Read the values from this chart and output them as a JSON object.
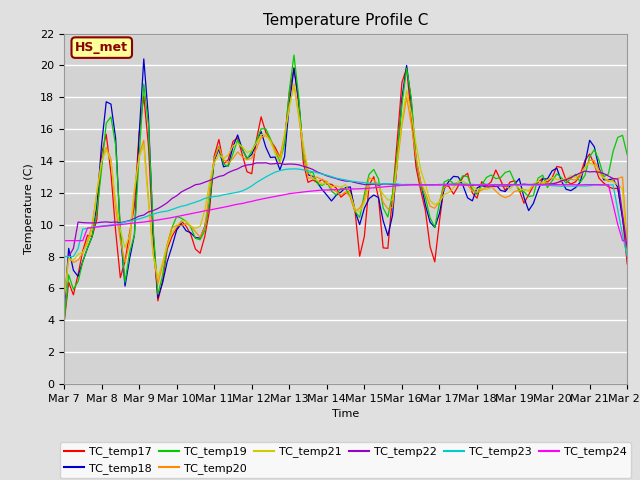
{
  "title": "Temperature Profile C",
  "xlabel": "Time",
  "ylabel": "Temperature (C)",
  "ylim": [
    0,
    22
  ],
  "yticks": [
    0,
    2,
    4,
    6,
    8,
    10,
    12,
    14,
    16,
    18,
    20,
    22
  ],
  "xtick_labels": [
    "Mar 7",
    "Mar 8",
    "Mar 9",
    "Mar 10",
    "Mar 11",
    "Mar 12",
    "Mar 13",
    "Mar 14",
    "Mar 15",
    "Mar 16",
    "Mar 17",
    "Mar 18",
    "Mar 19",
    "Mar 20",
    "Mar 21",
    "Mar 22"
  ],
  "annotation_text": "HS_met",
  "annotation_color": "#8B0000",
  "annotation_bg": "#FFFF99",
  "series_colors": {
    "TC_temp17": "#FF0000",
    "TC_temp18": "#0000CD",
    "TC_temp19": "#00CC00",
    "TC_temp20": "#FF8C00",
    "TC_temp21": "#CCCC00",
    "TC_temp22": "#9900CC",
    "TC_temp23": "#00CCCC",
    "TC_temp24": "#FF00FF"
  },
  "bg_color": "#E0E0E0",
  "plot_bg": "#D3D3D3",
  "grid_color": "#FFFFFF",
  "title_fontsize": 11,
  "axis_fontsize": 8,
  "legend_fontsize": 8
}
